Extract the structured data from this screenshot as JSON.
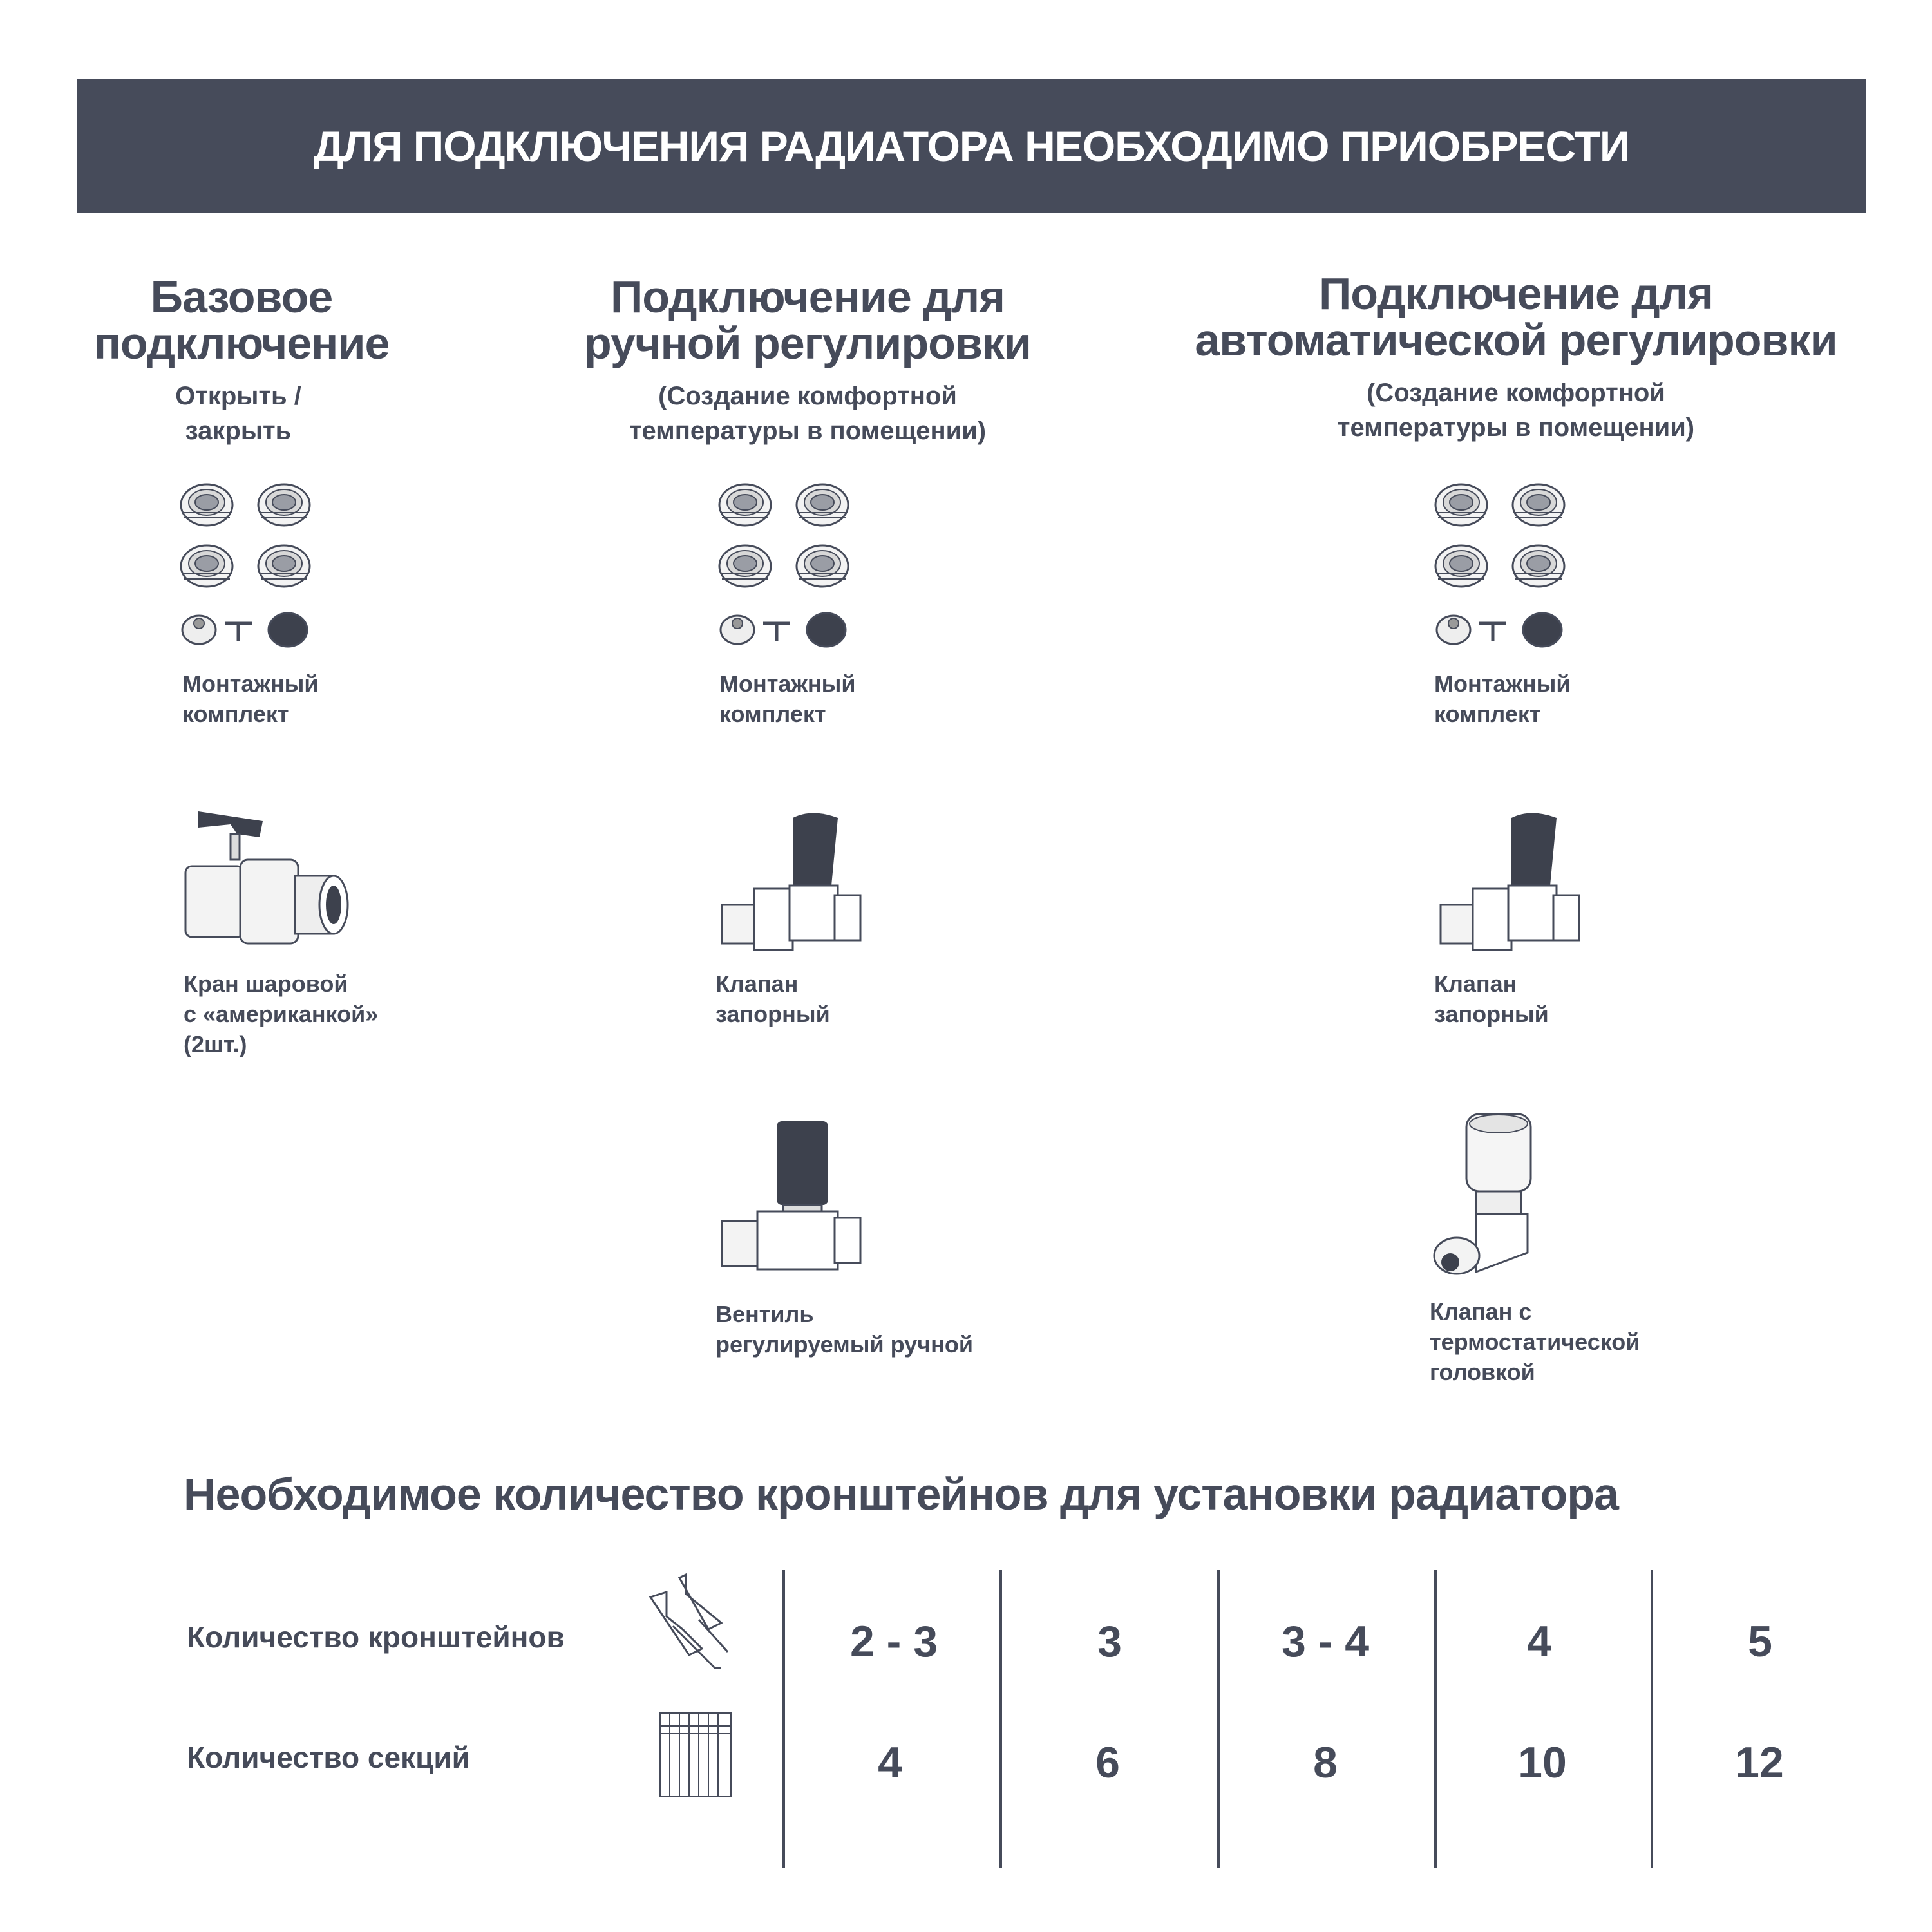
{
  "banner": {
    "title": "ДЛЯ ПОДКЛЮЧЕНИЯ РАДИАТОРА НЕОБХОДИМО ПРИОБРЕСТИ"
  },
  "columns": [
    {
      "title_line1": "Базовое",
      "title_line2": "подключение",
      "subtitle_line1": "Открыть /",
      "subtitle_line2": "закрыть",
      "items": [
        {
          "label": "Монтажный\nкомплект",
          "icon": "mounting-kit"
        },
        {
          "label": "Кран шаровой\nс «американкой»\n(2шт.)",
          "icon": "ball-valve"
        }
      ]
    },
    {
      "title_line1": "Подключение для",
      "title_line2": "ручной регулировки",
      "subtitle_line1": "(Создание комфортной",
      "subtitle_line2": "температуры в помещении)",
      "items": [
        {
          "label": "Монтажный\nкомплект",
          "icon": "mounting-kit"
        },
        {
          "label": "Клапан\nзапорный",
          "icon": "shutoff-valve"
        },
        {
          "label": "Вентиль\nрегулируемый ручной",
          "icon": "manual-valve"
        }
      ]
    },
    {
      "title_line1": "Подключение для",
      "title_line2": "автоматической регулировки",
      "subtitle_line1": "(Создание комфортной",
      "subtitle_line2": "температуры в помещении)",
      "items": [
        {
          "label": "Монтажный\nкомплект",
          "icon": "mounting-kit"
        },
        {
          "label": "Клапан\nзапорный",
          "icon": "shutoff-valve"
        },
        {
          "label": "Клапан с\nтермостатической\nголовкой",
          "icon": "thermostatic-valve"
        }
      ]
    }
  ],
  "brackets": {
    "title": "Необходимое количество кронштейнов для установки радиатора",
    "row_brackets_label": "Количество кронштейнов",
    "row_sections_label": "Количество секций",
    "brackets_values": [
      "2 - 3",
      "3",
      "3 - 4",
      "4",
      "5"
    ],
    "sections_values": [
      "4",
      "6",
      "8",
      "10",
      "12"
    ]
  },
  "colors": {
    "primary": "#464b5a",
    "background": "#ffffff"
  }
}
